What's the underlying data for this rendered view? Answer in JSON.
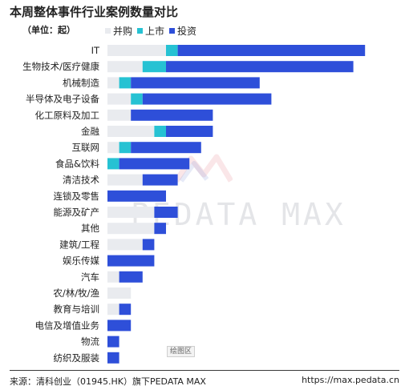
{
  "header": {
    "title": "本周整体事件行业案例数量对比",
    "unit": "（单位：起）"
  },
  "footer": {
    "source": "来源：清科创业（01945.HK）旗下PEDATA MAX",
    "url": "https://max.pedata.cn"
  },
  "watermark": "PEDATA MAX",
  "plot_area_tag": "绘图区",
  "colors": {
    "ma": "#e9ebef",
    "ipo": "#26c2d3",
    "invest": "#2e4fd9"
  },
  "chart_data": {
    "type": "bar",
    "orientation": "horizontal",
    "stacked": true,
    "title": "本周整体事件行业案例数量对比",
    "xlabel": "",
    "ylabel": "",
    "legend_position": "top-left",
    "grid": false,
    "categories": [
      "IT",
      "生物技术/医疗健康",
      "机械制造",
      "半导体及电子设备",
      "化工原料及加工",
      "金融",
      "互联网",
      "食品&饮料",
      "清洁技术",
      "连锁及零售",
      "能源及矿产",
      "其他",
      "建筑/工程",
      "娱乐传媒",
      "汽车",
      "农/林/牧/渔",
      "教育与培训",
      "电信及增值业务",
      "物流",
      "纺织及服装"
    ],
    "series": [
      {
        "name": "并购",
        "color": "#e9ebef",
        "values": [
          5,
          3,
          1,
          2,
          2,
          4,
          1,
          0,
          3,
          0,
          4,
          4,
          3,
          0,
          1,
          2,
          1,
          0,
          0,
          0
        ]
      },
      {
        "name": "上市",
        "color": "#26c2d3",
        "values": [
          1,
          2,
          1,
          1,
          0,
          1,
          1,
          1,
          0,
          0,
          0,
          0,
          0,
          0,
          0,
          0,
          0,
          0,
          0,
          0
        ]
      },
      {
        "name": "投资",
        "color": "#2e4fd9",
        "values": [
          16,
          16,
          11,
          11,
          7,
          4,
          6,
          6,
          3,
          5,
          2,
          1,
          1,
          4,
          2,
          0,
          1,
          2,
          1,
          1
        ]
      }
    ]
  }
}
